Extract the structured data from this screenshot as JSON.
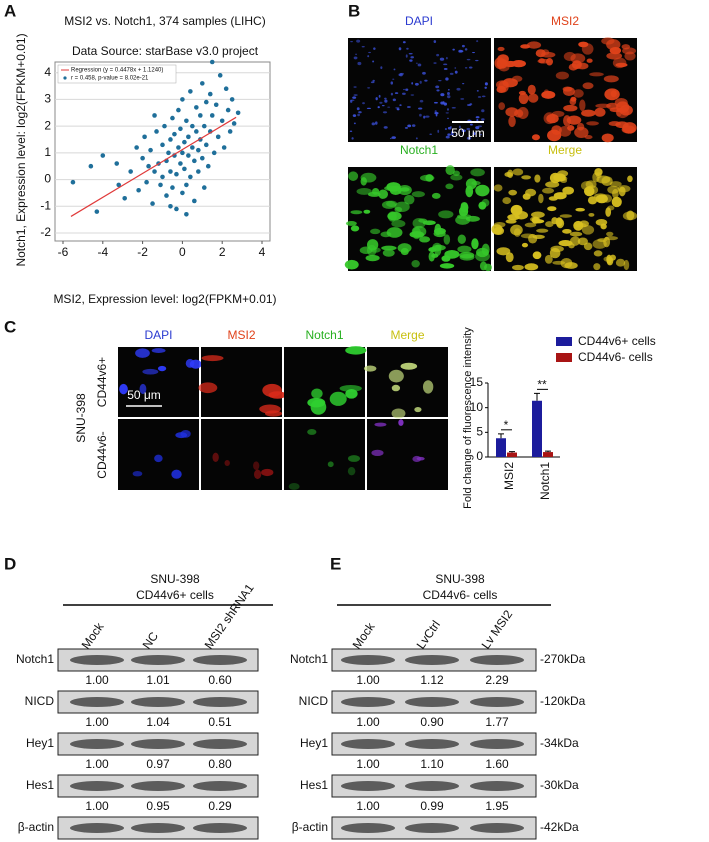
{
  "panel_labels": [
    "A",
    "B",
    "C",
    "D",
    "E"
  ],
  "chart_data": [
    {
      "type": "scatter",
      "title": "MSI2 vs. Notch1, 374 samples (LIHC)",
      "subtitle": "Data Source: starBase v3.0 project",
      "x_label": "MSI2, Expression level: log2(FPKM+0.01)",
      "y_label": "Notch1, Expression level: log2(FPKM+0.01)",
      "xlim": [
        -6,
        4
      ],
      "xticks": [
        -6,
        -4,
        -2,
        0,
        2,
        4
      ],
      "ylim": [
        -2,
        4.4
      ],
      "yticks": [
        -2,
        -1,
        0,
        1,
        2,
        3,
        4
      ],
      "grid": true,
      "line": {
        "name": "Regression (y = 0.4478x + 1.1240)",
        "color": "#e03a3a",
        "x": [
          -5.6,
          2.7
        ],
        "values": [
          -1.38,
          2.33
        ]
      },
      "series": [
        {
          "name": "r = 0.458, p-value = 8.02e-21",
          "color": "#1f6f9a",
          "x": [
            -5.5,
            -4.6,
            -4.3,
            -4.0,
            -3.3,
            -3.2,
            -2.9,
            -2.6,
            -2.3,
            -2.2,
            -2.0,
            -1.9,
            -1.8,
            -1.7,
            -1.6,
            -1.5,
            -1.4,
            -1.3,
            -1.2,
            -1.1,
            -1.0,
            -1.0,
            -0.9,
            -0.8,
            -0.8,
            -0.7,
            -0.6,
            -0.6,
            -0.5,
            -0.5,
            -0.4,
            -0.4,
            -0.3,
            -0.3,
            -0.2,
            -0.2,
            -0.1,
            -0.1,
            0.0,
            0.0,
            0.0,
            0.1,
            0.1,
            0.2,
            0.2,
            0.3,
            0.3,
            0.4,
            0.4,
            0.5,
            0.5,
            0.6,
            0.6,
            0.7,
            0.7,
            0.8,
            0.8,
            0.9,
            0.9,
            1.0,
            1.0,
            1.1,
            1.2,
            1.2,
            1.3,
            1.4,
            1.4,
            1.5,
            1.6,
            1.7,
            1.8,
            1.9,
            2.0,
            2.1,
            2.2,
            2.3,
            2.4,
            2.5,
            2.6,
            2.8,
            1.5,
            0.2,
            -0.6,
            1.1,
            -1.4
          ],
          "values": [
            -0.1,
            0.5,
            -1.2,
            0.9,
            0.6,
            -0.2,
            -0.7,
            0.3,
            1.2,
            -0.4,
            0.8,
            1.6,
            -0.1,
            0.5,
            1.1,
            -0.9,
            0.3,
            1.8,
            0.6,
            -0.2,
            1.3,
            0.1,
            2.0,
            0.7,
            -0.6,
            1.0,
            1.5,
            0.3,
            2.3,
            -0.3,
            0.9,
            1.7,
            0.2,
            -1.1,
            1.2,
            2.6,
            0.6,
            1.9,
            1.0,
            -0.5,
            3.0,
            0.4,
            1.4,
            2.2,
            -0.2,
            0.9,
            1.6,
            3.3,
            0.1,
            1.2,
            2.0,
            -0.8,
            0.7,
            1.8,
            2.7,
            1.1,
            0.3,
            2.4,
            1.5,
            3.6,
            0.8,
            2.0,
            1.3,
            2.9,
            0.5,
            1.8,
            3.2,
            2.4,
            1.0,
            2.8,
            1.6,
            3.9,
            2.2,
            1.2,
            3.4,
            2.6,
            1.8,
            3.0,
            2.1,
            2.5,
            4.4,
            -1.3,
            -1.0,
            -0.3,
            2.4
          ]
        }
      ]
    },
    {
      "type": "bar",
      "y_label": "Fold change of fluorescence intensity",
      "categories": [
        "MSI2",
        "Notch1"
      ],
      "ylim": [
        0,
        15
      ],
      "yticks": [
        0,
        5,
        10,
        15
      ],
      "annotations": [
        "*",
        "**"
      ],
      "series": [
        {
          "name": "CD44v6+ cells",
          "color": "#1c1c9c",
          "values": [
            3.8,
            11.4
          ],
          "errors": [
            0.9,
            1.5
          ]
        },
        {
          "name": "CD44v6- cells",
          "color": "#a81414",
          "values": [
            0.9,
            1.0
          ],
          "errors": [
            0.2,
            0.2
          ]
        }
      ]
    }
  ],
  "panel_b": {
    "labels": [
      "DAPI",
      "MSI2",
      "Notch1",
      "Merge"
    ],
    "scale_bar": "50 μm"
  },
  "panel_c": {
    "column_labels": [
      "DAPI",
      "MSI2",
      "Notch1",
      "Merge"
    ],
    "row_labels": [
      "CD44v6+",
      "CD44v6-"
    ],
    "cell_line": "SNU-398",
    "scale_bar": "50 μm"
  },
  "panel_d": {
    "header": [
      "SNU-398",
      "CD44v6+ cells"
    ],
    "lanes": [
      "Mock",
      "NC",
      "MSI2 shRNA1"
    ],
    "rows": [
      {
        "protein": "Notch1",
        "values": [
          "1.00",
          "1.01",
          "0.60"
        ]
      },
      {
        "protein": "NICD",
        "values": [
          "1.00",
          "1.04",
          "0.51"
        ]
      },
      {
        "protein": "Hey1",
        "values": [
          "1.00",
          "0.97",
          "0.80"
        ]
      },
      {
        "protein": "Hes1",
        "values": [
          "1.00",
          "0.95",
          "0.29"
        ]
      },
      {
        "protein": "β-actin"
      }
    ]
  },
  "panel_e": {
    "header": [
      "SNU-398",
      "CD44v6- cells"
    ],
    "lanes": [
      "Mock",
      "LvCtrl",
      "Lv MSI2"
    ],
    "rows": [
      {
        "protein": "Notch1",
        "size": "-270kDa",
        "values": [
          "1.00",
          "1.12",
          "2.29"
        ]
      },
      {
        "protein": "NICD",
        "size": "-120kDa",
        "values": [
          "1.00",
          "0.90",
          "1.77"
        ]
      },
      {
        "protein": "Hey1",
        "size": "-34kDa",
        "values": [
          "1.00",
          "1.10",
          "1.60"
        ]
      },
      {
        "protein": "Hes1",
        "size": "-30kDa",
        "values": [
          "1.00",
          "0.99",
          "1.95"
        ]
      },
      {
        "protein": "β-actin",
        "size": "-42kDa"
      }
    ]
  }
}
